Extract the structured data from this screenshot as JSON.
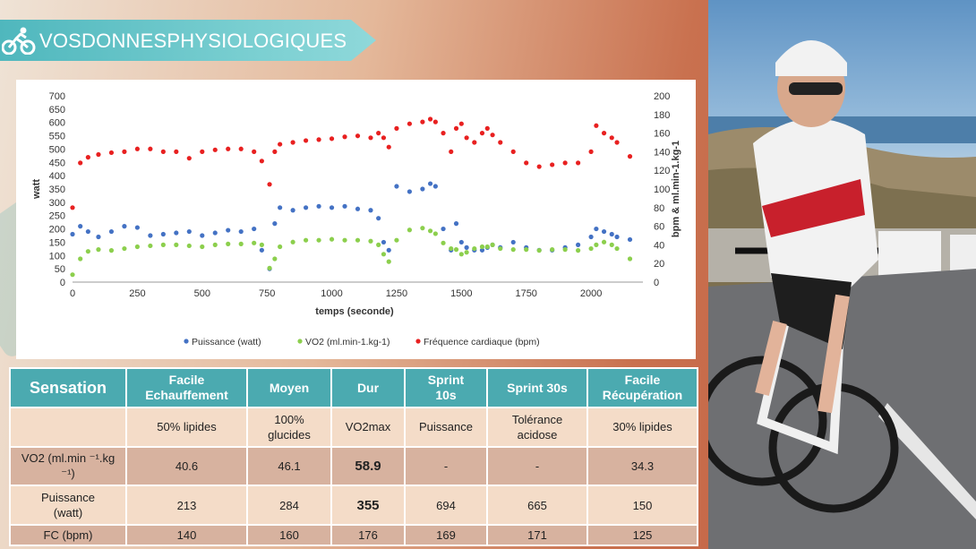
{
  "header": {
    "title": "VOSDONNESPHYSIOLOGIQUES",
    "icon": "cyclist-icon"
  },
  "chart_data": {
    "type": "scatter",
    "xlabel": "temps (seconde)",
    "ylabel_left": "watt",
    "ylabel_right": "bpm  &  ml.min-1.kg-1",
    "xlim": [
      0,
      2200
    ],
    "ylim_left": [
      0,
      700
    ],
    "ylim_right": [
      0,
      200
    ],
    "xticks": [
      "0",
      "250",
      "500",
      "750",
      "1000",
      "1250",
      "1500",
      "1750",
      "2000"
    ],
    "yticks_left": [
      "0",
      "50",
      "100",
      "150",
      "200",
      "250",
      "300",
      "350",
      "400",
      "450",
      "500",
      "550",
      "600",
      "650",
      "700"
    ],
    "yticks_right": [
      "0",
      "20",
      "40",
      "60",
      "80",
      "100",
      "120",
      "140",
      "160",
      "180",
      "200"
    ],
    "legend_position": "bottom",
    "series": [
      {
        "name": "Puissance (watt)",
        "color": "#4472c4",
        "axis": "left",
        "x": [
          0,
          30,
          60,
          100,
          150,
          200,
          250,
          300,
          350,
          400,
          450,
          500,
          550,
          600,
          650,
          700,
          730,
          760,
          780,
          800,
          850,
          900,
          950,
          1000,
          1050,
          1100,
          1150,
          1180,
          1200,
          1220,
          1250,
          1300,
          1350,
          1380,
          1400,
          1430,
          1460,
          1480,
          1500,
          1520,
          1550,
          1580,
          1600,
          1620,
          1650,
          1700,
          1750,
          1800,
          1850,
          1900,
          1950,
          2000,
          2020,
          2050,
          2080,
          2100,
          2150
        ],
        "values": [
          180,
          210,
          190,
          170,
          190,
          210,
          205,
          175,
          180,
          185,
          190,
          175,
          185,
          195,
          190,
          200,
          120,
          50,
          220,
          280,
          270,
          280,
          285,
          280,
          285,
          275,
          270,
          240,
          150,
          120,
          360,
          340,
          350,
          370,
          360,
          200,
          120,
          220,
          150,
          130,
          120,
          120,
          130,
          140,
          130,
          150,
          130,
          120,
          120,
          130,
          140,
          170,
          200,
          190,
          180,
          170,
          160
        ]
      },
      {
        "name": "VO2  (ml.min-1.kg-1)",
        "color": "#8ccf4d",
        "axis": "right",
        "x": [
          0,
          30,
          60,
          100,
          150,
          200,
          250,
          300,
          350,
          400,
          450,
          500,
          550,
          600,
          650,
          700,
          730,
          760,
          780,
          800,
          850,
          900,
          950,
          1000,
          1050,
          1100,
          1150,
          1180,
          1200,
          1220,
          1250,
          1300,
          1350,
          1380,
          1400,
          1430,
          1460,
          1480,
          1500,
          1520,
          1550,
          1580,
          1600,
          1620,
          1650,
          1700,
          1750,
          1800,
          1850,
          1900,
          1950,
          2000,
          2020,
          2050,
          2080,
          2100,
          2150
        ],
        "values": [
          8,
          25,
          33,
          35,
          34,
          36,
          38,
          39,
          40,
          40,
          39,
          38,
          40,
          41,
          41,
          42,
          40,
          15,
          25,
          38,
          43,
          45,
          45,
          46,
          45,
          45,
          44,
          40,
          30,
          22,
          45,
          56,
          58,
          55,
          52,
          42,
          36,
          35,
          30,
          32,
          36,
          38,
          38,
          40,
          36,
          35,
          35,
          34,
          35,
          35,
          34,
          36,
          40,
          43,
          40,
          36,
          25
        ]
      },
      {
        "name": "Fréquence cardiaque (bpm)",
        "color": "#e82020",
        "axis": "right",
        "x": [
          0,
          30,
          60,
          100,
          150,
          200,
          250,
          300,
          350,
          400,
          450,
          500,
          550,
          600,
          650,
          700,
          730,
          760,
          780,
          800,
          850,
          900,
          950,
          1000,
          1050,
          1100,
          1150,
          1180,
          1200,
          1220,
          1250,
          1300,
          1350,
          1380,
          1400,
          1430,
          1460,
          1480,
          1500,
          1520,
          1550,
          1580,
          1600,
          1620,
          1650,
          1700,
          1750,
          1800,
          1850,
          1900,
          1950,
          2000,
          2020,
          2050,
          2080,
          2100,
          2150
        ],
        "values": [
          80,
          128,
          134,
          137,
          139,
          140,
          143,
          143,
          140,
          140,
          133,
          140,
          142,
          143,
          143,
          140,
          130,
          105,
          140,
          148,
          150,
          152,
          153,
          154,
          156,
          157,
          155,
          160,
          155,
          145,
          165,
          170,
          172,
          175,
          172,
          160,
          140,
          165,
          170,
          155,
          150,
          160,
          165,
          158,
          150,
          140,
          128,
          124,
          126,
          128,
          128,
          140,
          168,
          160,
          155,
          150,
          135
        ]
      }
    ]
  },
  "table": {
    "headers": [
      "Sensation",
      "Facile\nEchauffement",
      "Moyen",
      "Dur",
      "Sprint\n10s",
      "Sprint   30s",
      "Facile\nRécupération"
    ],
    "rows": [
      {
        "label": "",
        "cells": [
          "50%   lipides",
          "100%\nglucides",
          "VO2max",
          "Puissance",
          "Tolérance\nacidose",
          "30%   lipides"
        ]
      },
      {
        "label": "VO2  (ml.min ⁻¹.kg ⁻¹)",
        "cells": [
          "40.6",
          "46.1",
          "58.9",
          "-",
          "-",
          "34.3"
        ]
      },
      {
        "label": "Puissance\n(watt)",
        "cells": [
          "213",
          "284",
          "355",
          "694",
          "665",
          "150"
        ]
      },
      {
        "label": "FC  (bpm)",
        "cells": [
          "140",
          "160",
          "176",
          "169",
          "171",
          "125"
        ]
      }
    ]
  },
  "colors": {
    "teal": "#4baab0",
    "row_light": "#f4dcc8",
    "row_dark": "#d7b29f"
  },
  "photo": {
    "description_icon": "cyclist-photo"
  }
}
